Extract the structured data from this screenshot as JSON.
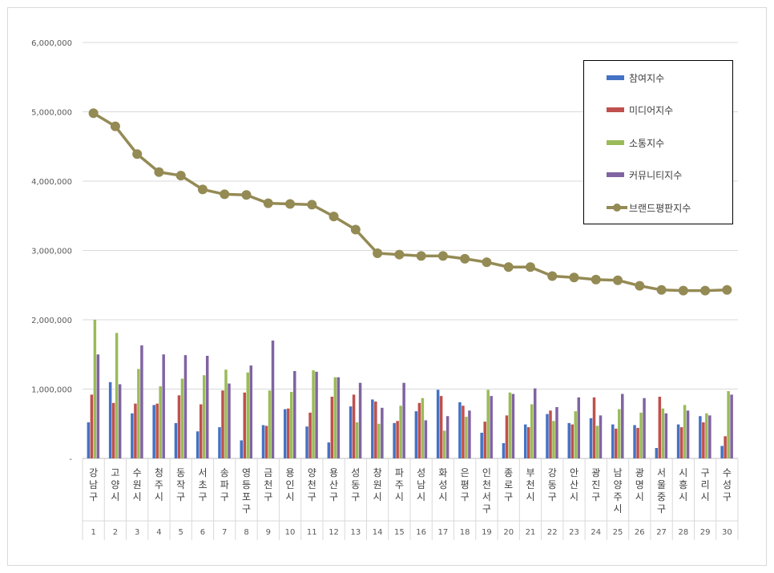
{
  "chart_data": {
    "type": "bar+line",
    "ylim": [
      0,
      6000000
    ],
    "yticks": [
      "-",
      "1,000,000",
      "2,000,000",
      "3,000,000",
      "4,000,000",
      "5,000,000",
      "6,000,000"
    ],
    "grid": true,
    "legend_position": "top-right",
    "ranks": [
      "1",
      "2",
      "3",
      "4",
      "5",
      "6",
      "7",
      "8",
      "9",
      "10",
      "11",
      "12",
      "13",
      "14",
      "15",
      "16",
      "17",
      "18",
      "19",
      "20",
      "21",
      "22",
      "23",
      "24",
      "25",
      "26",
      "27",
      "28",
      "29",
      "30"
    ],
    "categories": [
      "강남구",
      "고양시",
      "수원시",
      "청주시",
      "동작구",
      "서초구",
      "송파구",
      "영등포구",
      "금천구",
      "용인시",
      "양천구",
      "용산구",
      "성동구",
      "창원시",
      "파주시",
      "성남시",
      "화성시",
      "은평구",
      "인천서구",
      "종로구",
      "부천시",
      "강동구",
      "안산시",
      "광진구",
      "남양주시",
      "광명시",
      "서울중구",
      "시흥시",
      "구리시",
      "수성구"
    ],
    "series": [
      {
        "name": "참여지수",
        "kind": "bar",
        "color": "#4472c4",
        "values": [
          520000,
          1100000,
          650000,
          770000,
          510000,
          390000,
          450000,
          260000,
          480000,
          710000,
          460000,
          230000,
          750000,
          850000,
          510000,
          680000,
          990000,
          810000,
          370000,
          220000,
          490000,
          640000,
          510000,
          580000,
          490000,
          480000,
          150000,
          490000,
          610000,
          180000
        ]
      },
      {
        "name": "미디어지수",
        "kind": "bar",
        "color": "#c0504d",
        "values": [
          920000,
          800000,
          790000,
          790000,
          910000,
          780000,
          980000,
          950000,
          470000,
          720000,
          660000,
          890000,
          920000,
          820000,
          540000,
          800000,
          900000,
          760000,
          530000,
          620000,
          450000,
          690000,
          490000,
          880000,
          430000,
          440000,
          890000,
          450000,
          520000,
          320000
        ]
      },
      {
        "name": "소통지수",
        "kind": "bar",
        "color": "#9bbb59",
        "values": [
          2000000,
          1810000,
          1290000,
          1040000,
          1150000,
          1200000,
          1280000,
          1240000,
          980000,
          960000,
          1270000,
          1170000,
          520000,
          500000,
          760000,
          870000,
          400000,
          600000,
          990000,
          950000,
          780000,
          540000,
          680000,
          470000,
          710000,
          660000,
          720000,
          770000,
          650000,
          970000
        ]
      },
      {
        "name": "커뮤니티지수",
        "kind": "bar",
        "color": "#8064a2",
        "values": [
          1500000,
          1070000,
          1630000,
          1500000,
          1490000,
          1480000,
          1080000,
          1340000,
          1700000,
          1260000,
          1250000,
          1170000,
          1090000,
          730000,
          1090000,
          550000,
          610000,
          690000,
          900000,
          930000,
          1010000,
          740000,
          880000,
          620000,
          930000,
          870000,
          650000,
          690000,
          620000,
          920000
        ]
      },
      {
        "name": "브랜드평판지수",
        "kind": "line",
        "color": "#948a54",
        "values": [
          4980000,
          4790000,
          4390000,
          4130000,
          4080000,
          3880000,
          3810000,
          3800000,
          3680000,
          3670000,
          3660000,
          3490000,
          3300000,
          2960000,
          2940000,
          2920000,
          2920000,
          2880000,
          2830000,
          2760000,
          2760000,
          2630000,
          2610000,
          2580000,
          2570000,
          2490000,
          2430000,
          2420000,
          2420000,
          2430000
        ]
      }
    ]
  }
}
